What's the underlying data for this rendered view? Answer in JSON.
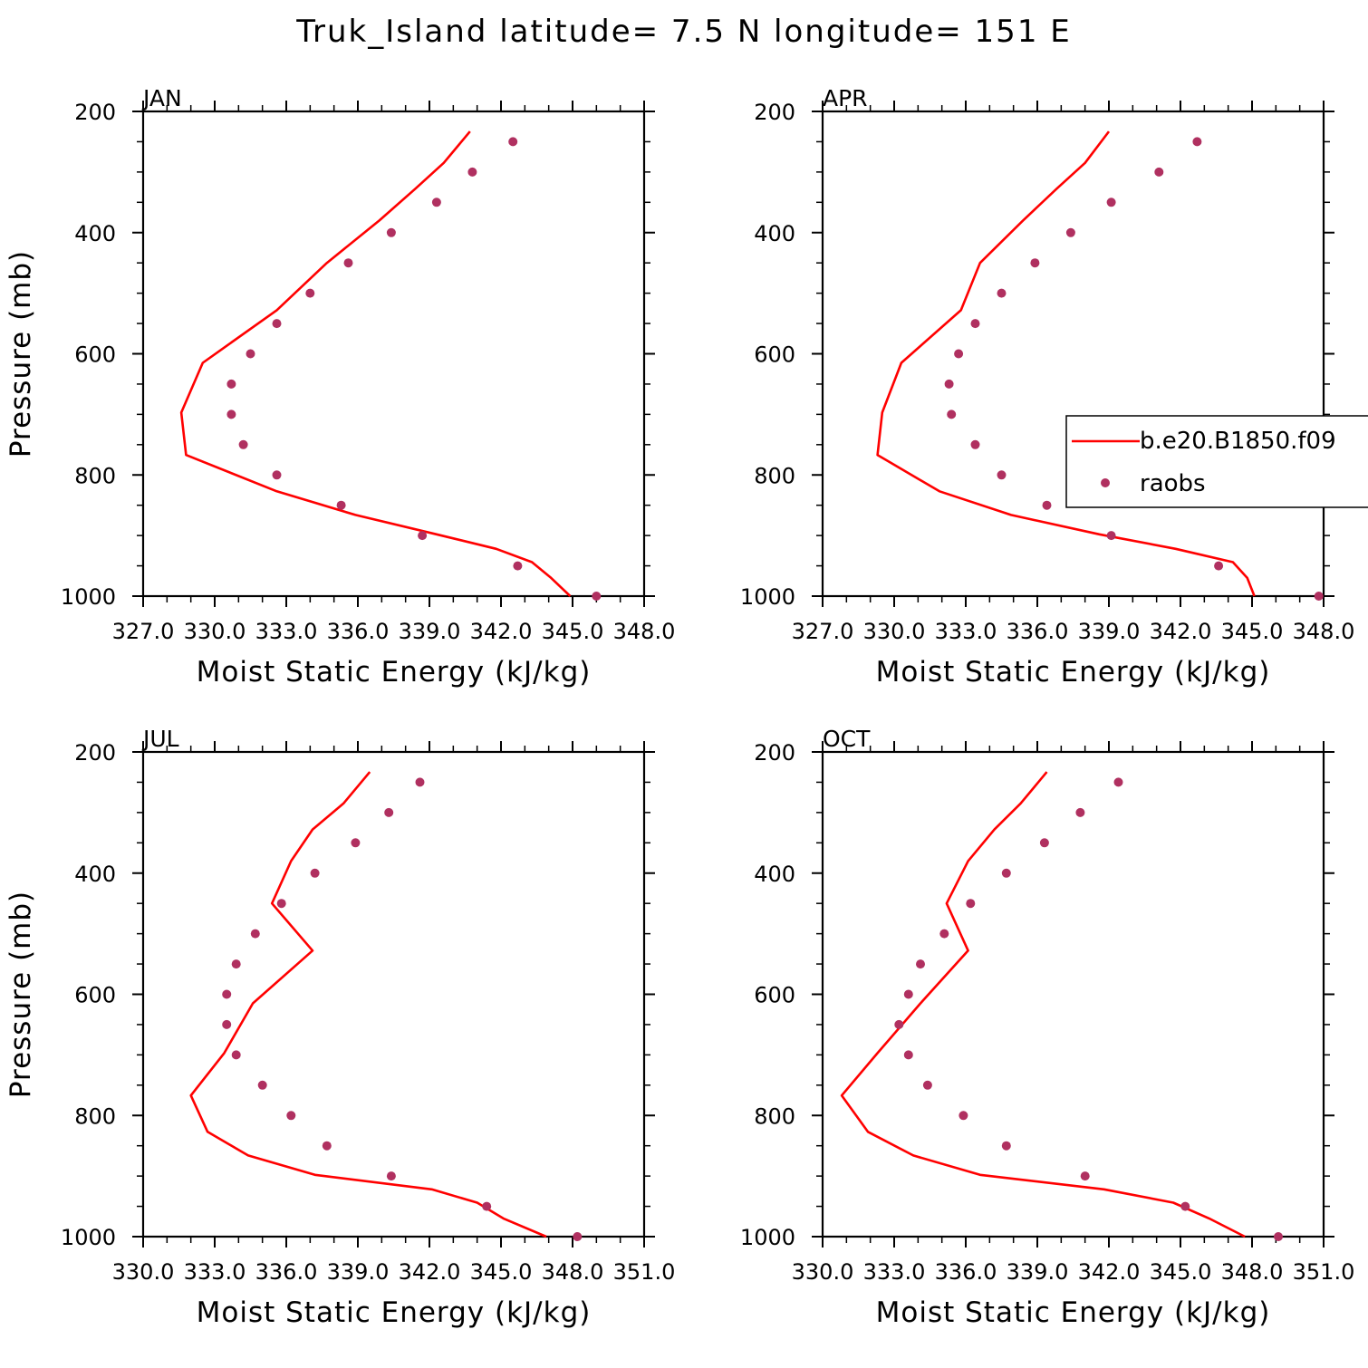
{
  "title": "Truk_Island  latitude= 7.5 N longitude= 151 E",
  "colors": {
    "model": "#ff0000",
    "obs": "#b03060",
    "axes": "#000000"
  },
  "legend": {
    "model_label": "b.e20.B1850.f09",
    "obs_label": "raobs"
  },
  "chart_data": [
    {
      "type": "line",
      "panel": "JAN",
      "xlabel": "Moist Static Energy (kJ/kg)",
      "ylabel": "Pressure (mb)",
      "xlim": [
        327,
        348
      ],
      "x_tick_labels": [
        "327.0",
        "330.0",
        "333.0",
        "336.0",
        "339.0",
        "342.0",
        "345.0",
        "348.0"
      ],
      "ylim": [
        1000,
        200
      ],
      "y_tick_labels": [
        "200",
        "400",
        "600",
        "800",
        "1000"
      ],
      "series": [
        {
          "name": "b.e20.B1850.f09",
          "style": "line",
          "x": [
            340.7,
            339.6,
            338.4,
            336.9,
            334.7,
            332.6,
            329.5,
            328.6,
            328.8,
            332.6,
            335.9,
            339.3,
            341.8,
            343.3,
            344.1,
            344.9
          ],
          "y": [
            233,
            285,
            328,
            380,
            450,
            528,
            615,
            697,
            767,
            827,
            866,
            898,
            922,
            944,
            970,
            1000
          ]
        },
        {
          "name": "raobs",
          "style": "markers",
          "x": [
            342.5,
            340.8,
            339.3,
            337.4,
            335.6,
            334.0,
            332.6,
            331.5,
            330.7,
            330.7,
            331.2,
            332.6,
            335.3,
            338.7,
            342.7,
            346.0
          ],
          "y": [
            250,
            300,
            350,
            400,
            450,
            500,
            550,
            600,
            650,
            700,
            750,
            800,
            850,
            900,
            950,
            1000
          ]
        }
      ]
    },
    {
      "type": "line",
      "panel": "APR",
      "xlabel": "Moist Static Energy (kJ/kg)",
      "ylabel": "",
      "xlim": [
        327,
        348
      ],
      "x_tick_labels": [
        "327.0",
        "330.0",
        "333.0",
        "336.0",
        "339.0",
        "342.0",
        "345.0",
        "348.0"
      ],
      "ylim": [
        1000,
        200
      ],
      "y_tick_labels": [
        "200",
        "400",
        "600",
        "800",
        "1000"
      ],
      "series": [
        {
          "name": "b.e20.B1850.f09",
          "style": "line",
          "x": [
            339.0,
            338.0,
            336.8,
            335.4,
            333.6,
            332.8,
            330.3,
            329.5,
            329.3,
            331.9,
            334.9,
            338.6,
            341.8,
            344.2,
            344.8,
            345.1
          ],
          "y": [
            233,
            285,
            328,
            380,
            450,
            528,
            615,
            697,
            767,
            827,
            866,
            898,
            922,
            944,
            970,
            1000
          ]
        },
        {
          "name": "raobs",
          "style": "markers",
          "x": [
            342.7,
            341.1,
            339.1,
            337.4,
            335.9,
            334.5,
            333.4,
            332.7,
            332.3,
            332.4,
            333.4,
            334.5,
            336.4,
            339.1,
            343.6,
            347.8
          ],
          "y": [
            250,
            300,
            350,
            400,
            450,
            500,
            550,
            600,
            650,
            700,
            750,
            800,
            850,
            900,
            950,
            1000
          ]
        }
      ]
    },
    {
      "type": "line",
      "panel": "JUL",
      "xlabel": "Moist Static Energy (kJ/kg)",
      "ylabel": "Pressure (mb)",
      "xlim": [
        330,
        351
      ],
      "x_tick_labels": [
        "330.0",
        "333.0",
        "336.0",
        "339.0",
        "342.0",
        "345.0",
        "348.0",
        "351.0"
      ],
      "ylim": [
        1000,
        200
      ],
      "y_tick_labels": [
        "200",
        "400",
        "600",
        "800",
        "1000"
      ],
      "series": [
        {
          "name": "b.e20.B1850.f09",
          "style": "line",
          "x": [
            339.5,
            338.4,
            337.1,
            336.2,
            335.4,
            337.1,
            334.6,
            333.4,
            332.0,
            332.7,
            334.4,
            337.2,
            342.1,
            344.0,
            345.1,
            346.9
          ],
          "y": [
            233,
            285,
            328,
            380,
            450,
            528,
            615,
            697,
            767,
            827,
            866,
            898,
            922,
            944,
            970,
            1000
          ]
        },
        {
          "name": "raobs",
          "style": "markers",
          "x": [
            341.6,
            340.3,
            338.9,
            337.2,
            335.8,
            334.7,
            333.9,
            333.5,
            333.5,
            333.9,
            335.0,
            336.2,
            337.7,
            340.4,
            344.4,
            348.2
          ],
          "y": [
            250,
            300,
            350,
            400,
            450,
            500,
            550,
            600,
            650,
            700,
            750,
            800,
            850,
            900,
            950,
            1000
          ]
        }
      ]
    },
    {
      "type": "line",
      "panel": "OCT",
      "xlabel": "Moist Static Energy (kJ/kg)",
      "ylabel": "",
      "xlim": [
        330,
        351
      ],
      "x_tick_labels": [
        "330.0",
        "333.0",
        "336.0",
        "339.0",
        "342.0",
        "345.0",
        "348.0",
        "351.0"
      ],
      "ylim": [
        1000,
        200
      ],
      "y_tick_labels": [
        "200",
        "400",
        "600",
        "800",
        "1000"
      ],
      "series": [
        {
          "name": "b.e20.B1850.f09",
          "style": "line",
          "x": [
            339.4,
            338.3,
            337.2,
            336.1,
            335.2,
            336.1,
            334.1,
            332.3,
            330.8,
            331.9,
            333.8,
            336.6,
            341.8,
            344.7,
            346.2,
            347.7
          ],
          "y": [
            233,
            285,
            328,
            380,
            450,
            528,
            615,
            697,
            767,
            827,
            866,
            898,
            922,
            944,
            970,
            1000
          ]
        },
        {
          "name": "raobs",
          "style": "markers",
          "x": [
            342.4,
            340.8,
            339.3,
            337.7,
            336.2,
            335.1,
            334.1,
            333.6,
            333.2,
            333.6,
            334.4,
            335.9,
            337.7,
            341.0,
            345.2,
            349.1
          ],
          "y": [
            250,
            300,
            350,
            400,
            450,
            500,
            550,
            600,
            650,
            700,
            750,
            800,
            850,
            900,
            950,
            1000
          ]
        }
      ]
    }
  ]
}
